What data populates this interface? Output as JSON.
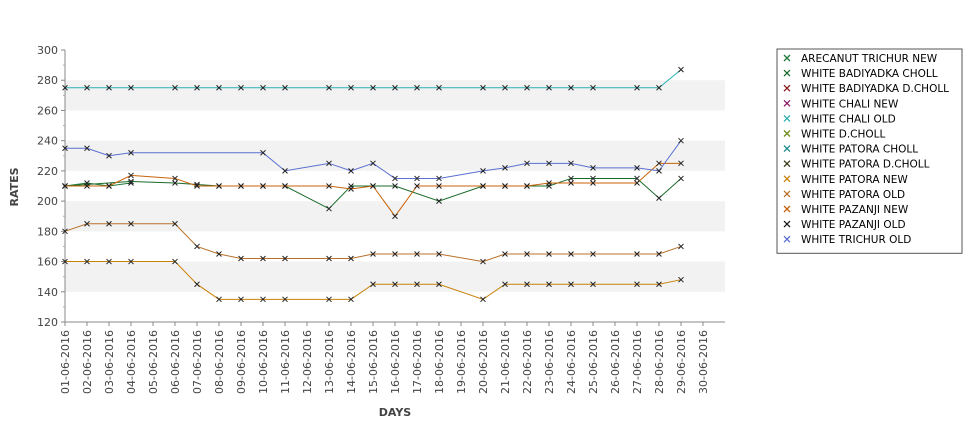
{
  "chart_data": {
    "type": "line",
    "xlabel": "DAYS",
    "ylabel": "RATES",
    "ylim": [
      120,
      300
    ],
    "yticks": [
      120,
      140,
      160,
      180,
      200,
      220,
      240,
      260,
      280,
      300
    ],
    "grid": "alternating horizontal bands",
    "legend_position": "right",
    "categories": [
      "01-06-2016",
      "02-06-2016",
      "03-06-2016",
      "04-06-2016",
      "05-06-2016",
      "06-06-2016",
      "07-06-2016",
      "08-06-2016",
      "09-06-2016",
      "10-06-2016",
      "11-06-2016",
      "12-06-2016",
      "13-06-2016",
      "14-06-2016",
      "15-06-2016",
      "16-06-2016",
      "17-06-2016",
      "18-06-2016",
      "19-06-2016",
      "20-06-2016",
      "21-06-2016",
      "22-06-2016",
      "23-06-2016",
      "24-06-2016",
      "25-06-2016",
      "26-06-2016",
      "27-06-2016",
      "28-06-2016",
      "29-06-2016",
      "30-06-2016"
    ],
    "series": [
      {
        "name": "ARECANUT TRICHUR NEW",
        "color": "#1f7a3a",
        "values": [
          210,
          212,
          210,
          212,
          null,
          null,
          null,
          null,
          null,
          null,
          null,
          null,
          null,
          null,
          null,
          null,
          null,
          null,
          null,
          null,
          null,
          null,
          null,
          null,
          null,
          null,
          null,
          null,
          null,
          null
        ]
      },
      {
        "name": "WHITE BADIYADKA CHOLL",
        "color": "#1a6b2a",
        "values": [
          210,
          null,
          null,
          213,
          null,
          212,
          211,
          210,
          210,
          210,
          210,
          null,
          195,
          210,
          210,
          210,
          null,
          200,
          null,
          210,
          210,
          210,
          210,
          215,
          215,
          null,
          215,
          202,
          215,
          null
        ]
      },
      {
        "name": "WHITE BADIYADKA D.CHOLL",
        "color": "#8b1a1a",
        "values": [
          null,
          null,
          null,
          null,
          null,
          null,
          null,
          null,
          null,
          null,
          null,
          null,
          null,
          null,
          null,
          null,
          null,
          null,
          null,
          null,
          null,
          null,
          null,
          null,
          null,
          null,
          null,
          null,
          null,
          null
        ]
      },
      {
        "name": "WHITE CHALI NEW",
        "color": "#8b1a6b",
        "values": [
          null,
          null,
          null,
          null,
          null,
          null,
          null,
          null,
          null,
          null,
          null,
          null,
          null,
          null,
          null,
          null,
          null,
          null,
          null,
          null,
          null,
          null,
          null,
          null,
          null,
          null,
          null,
          null,
          null,
          null
        ]
      },
      {
        "name": "WHITE CHALI OLD",
        "color": "#2ab0b0",
        "values": [
          275,
          275,
          275,
          275,
          null,
          275,
          275,
          275,
          275,
          275,
          275,
          null,
          275,
          275,
          275,
          275,
          275,
          275,
          null,
          275,
          275,
          275,
          275,
          275,
          275,
          null,
          275,
          275,
          287,
          null
        ]
      },
      {
        "name": "WHITE D.CHOLL",
        "color": "#6b8b1a",
        "values": [
          null,
          null,
          null,
          null,
          null,
          null,
          null,
          null,
          null,
          null,
          null,
          null,
          null,
          null,
          null,
          null,
          null,
          null,
          null,
          null,
          null,
          null,
          null,
          null,
          null,
          null,
          null,
          null,
          null,
          null
        ]
      },
      {
        "name": "WHITE PATORA CHOLL",
        "color": "#1a8b8b",
        "values": [
          null,
          null,
          null,
          null,
          null,
          null,
          null,
          null,
          null,
          null,
          null,
          null,
          null,
          null,
          null,
          null,
          null,
          null,
          null,
          null,
          null,
          null,
          null,
          null,
          null,
          null,
          null,
          null,
          null,
          null
        ]
      },
      {
        "name": "WHITE PATORA D.CHOLL",
        "color": "#3a3a1a",
        "values": [
          null,
          null,
          null,
          null,
          null,
          null,
          null,
          null,
          null,
          null,
          null,
          null,
          null,
          null,
          null,
          null,
          null,
          null,
          null,
          null,
          null,
          null,
          null,
          null,
          null,
          null,
          null,
          null,
          null,
          null
        ]
      },
      {
        "name": "WHITE PATORA NEW",
        "color": "#c8820a",
        "values": [
          160,
          160,
          160,
          160,
          null,
          160,
          145,
          135,
          135,
          135,
          135,
          null,
          135,
          135,
          145,
          145,
          145,
          145,
          null,
          135,
          145,
          145,
          145,
          145,
          145,
          null,
          145,
          145,
          148,
          null
        ]
      },
      {
        "name": "WHITE PATORA OLD",
        "color": "#b8702a",
        "values": [
          180,
          185,
          185,
          185,
          null,
          185,
          170,
          165,
          162,
          162,
          162,
          null,
          162,
          162,
          165,
          165,
          165,
          165,
          null,
          160,
          165,
          165,
          165,
          165,
          165,
          null,
          165,
          165,
          170,
          null
        ]
      },
      {
        "name": "WHITE PAZANJI NEW",
        "color": "#c8620a",
        "values": [
          210,
          210,
          210,
          217,
          null,
          215,
          210,
          210,
          210,
          210,
          210,
          null,
          210,
          208,
          210,
          190,
          210,
          210,
          null,
          210,
          210,
          210,
          212,
          212,
          212,
          null,
          212,
          225,
          225,
          null
        ]
      },
      {
        "name": "WHITE PAZANJI OLD",
        "color": "#1a1a1a",
        "values": [
          null,
          null,
          null,
          null,
          null,
          null,
          null,
          null,
          null,
          null,
          null,
          null,
          null,
          null,
          null,
          null,
          null,
          null,
          null,
          null,
          null,
          null,
          null,
          null,
          null,
          null,
          null,
          null,
          null,
          null
        ]
      },
      {
        "name": "WHITE TRICHUR OLD",
        "color": "#5a6fd0",
        "values": [
          235,
          235,
          230,
          232,
          null,
          null,
          null,
          null,
          null,
          232,
          220,
          null,
          225,
          220,
          225,
          215,
          215,
          215,
          null,
          220,
          222,
          225,
          225,
          225,
          222,
          null,
          222,
          220,
          240,
          null
        ]
      }
    ]
  }
}
